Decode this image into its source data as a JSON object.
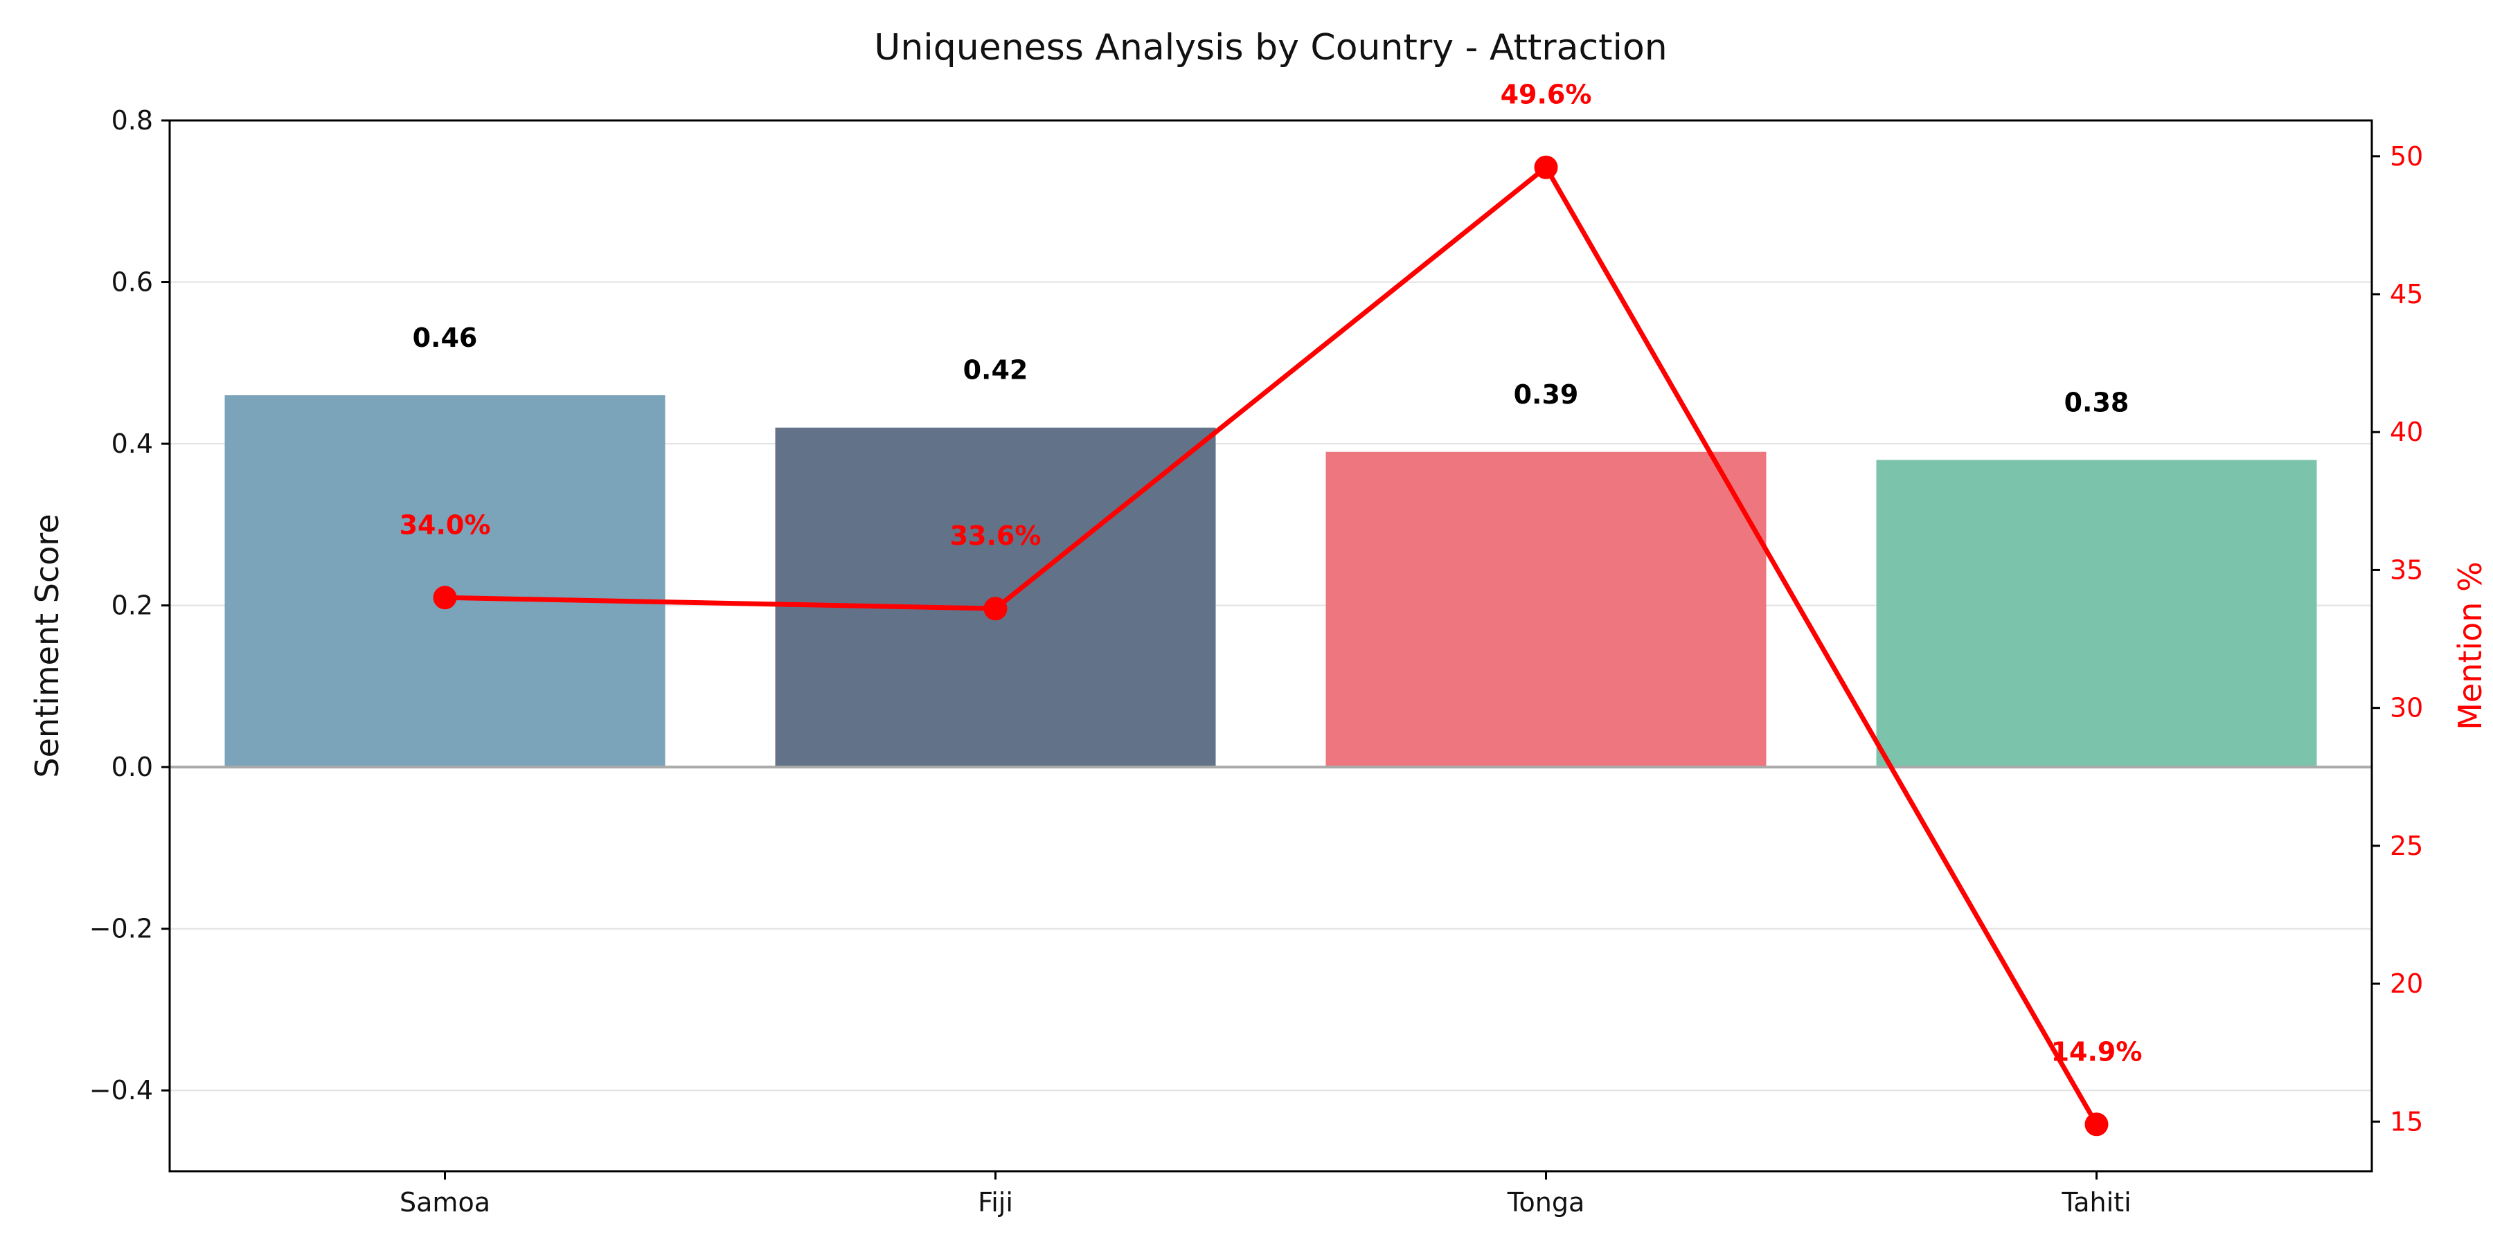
{
  "chart_data": {
    "type": "bar",
    "title": "Uniqueness Analysis by Country - Attraction",
    "categories": [
      "Samoa",
      "Fiji",
      "Tonga",
      "Tahiti"
    ],
    "ylabel": "Sentiment Score",
    "y2label": "Mention %",
    "ylim": [
      -0.5,
      0.8
    ],
    "y2lim": [
      13.2,
      51.3
    ],
    "yticks": [
      "0.8",
      "0.6",
      "0.4",
      "0.2",
      "0.0",
      "−0.2",
      "−0.4"
    ],
    "ytick_values": [
      0.8,
      0.6,
      0.4,
      0.2,
      0.0,
      -0.2,
      -0.4
    ],
    "y2ticks": [
      "50",
      "45",
      "40",
      "35",
      "30",
      "25",
      "20",
      "15"
    ],
    "y2tick_values": [
      50,
      45,
      40,
      35,
      30,
      25,
      20,
      15
    ],
    "grid": true,
    "series": [
      {
        "kind": "bar",
        "axis": "left",
        "values": [
          0.46,
          0.42,
          0.39,
          0.38
        ],
        "labels": [
          "0.46",
          "0.42",
          "0.39",
          "0.38"
        ],
        "colors": [
          "#7ba3ba",
          "#627389",
          "#ee767e",
          "#7cc3ac"
        ]
      },
      {
        "kind": "line",
        "axis": "right",
        "values": [
          34.0,
          33.6,
          49.6,
          14.9
        ],
        "labels": [
          "34.0%",
          "33.6%",
          "49.6%",
          "14.9%"
        ],
        "color": "#ff0000"
      }
    ]
  }
}
